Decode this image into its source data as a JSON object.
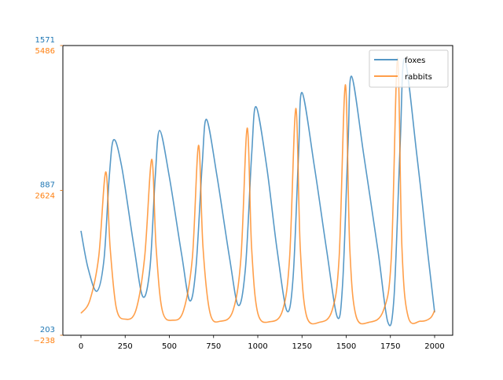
{
  "chart_data": {
    "type": "line",
    "title": "",
    "xlabel": "",
    "ylabel": "",
    "xlim": [
      -100,
      2100
    ],
    "x_ticks": [
      0,
      250,
      500,
      750,
      1000,
      1250,
      1500,
      1750,
      2000
    ],
    "x_tick_labels": [
      "0",
      "250",
      "500",
      "750",
      "1000",
      "1250",
      "1500",
      "1750",
      "2000"
    ],
    "grid": false,
    "legend_position": "upper right",
    "y_axes": [
      {
        "series": "foxes",
        "color": "#1f77b4",
        "ylim": [
          203,
          1571
        ],
        "ticks": [
          203,
          887,
          1571
        ],
        "tick_labels": [
          "203",
          "887",
          "1571"
        ]
      },
      {
        "series": "rabbits",
        "color": "#ff7f0e",
        "ylim": [
          -238,
          5486
        ],
        "ticks": [
          -238,
          2624,
          5486
        ],
        "tick_labels": [
          "−238",
          "2624",
          "5486"
        ]
      }
    ],
    "series": [
      {
        "name": "foxes",
        "color": "#1f77b4",
        "points": [
          [
            0,
            696
          ],
          [
            40,
            520
          ],
          [
            90,
            411
          ],
          [
            130,
            560
          ],
          [
            160,
            950
          ],
          [
            185,
            1126
          ],
          [
            230,
            1000
          ],
          [
            300,
            620
          ],
          [
            350,
            385
          ],
          [
            390,
            520
          ],
          [
            420,
            950
          ],
          [
            445,
            1170
          ],
          [
            500,
            950
          ],
          [
            570,
            580
          ],
          [
            615,
            366
          ],
          [
            650,
            520
          ],
          [
            685,
            1000
          ],
          [
            710,
            1222
          ],
          [
            770,
            950
          ],
          [
            840,
            570
          ],
          [
            890,
            344
          ],
          [
            930,
            520
          ],
          [
            965,
            1050
          ],
          [
            990,
            1282
          ],
          [
            1050,
            1000
          ],
          [
            1110,
            600
          ],
          [
            1165,
            318
          ],
          [
            1200,
            480
          ],
          [
            1230,
            1050
          ],
          [
            1250,
            1349
          ],
          [
            1320,
            1000
          ],
          [
            1390,
            600
          ],
          [
            1450,
            288
          ],
          [
            1480,
            450
          ],
          [
            1510,
            1100
          ],
          [
            1530,
            1426
          ],
          [
            1600,
            1050
          ],
          [
            1680,
            600
          ],
          [
            1735,
            266
          ],
          [
            1770,
            380
          ],
          [
            1805,
            1100
          ],
          [
            1830,
            1508
          ],
          [
            1900,
            1050
          ],
          [
            1960,
            600
          ],
          [
            2000,
            311
          ]
        ]
      },
      {
        "name": "rabbits",
        "color": "#ff7f0e",
        "points": [
          [
            0,
            196
          ],
          [
            50,
            450
          ],
          [
            100,
            1300
          ],
          [
            140,
            2988
          ],
          [
            165,
            1500
          ],
          [
            200,
            300
          ],
          [
            250,
            80
          ],
          [
            310,
            250
          ],
          [
            360,
            1300
          ],
          [
            400,
            3236
          ],
          [
            425,
            1500
          ],
          [
            460,
            250
          ],
          [
            520,
            60
          ],
          [
            580,
            250
          ],
          [
            630,
            1300
          ],
          [
            665,
            3515
          ],
          [
            690,
            1500
          ],
          [
            730,
            200
          ],
          [
            790,
            40
          ],
          [
            860,
            250
          ],
          [
            905,
            1300
          ],
          [
            940,
            3856
          ],
          [
            965,
            1500
          ],
          [
            1000,
            200
          ],
          [
            1070,
            30
          ],
          [
            1140,
            250
          ],
          [
            1180,
            1300
          ],
          [
            1215,
            4244
          ],
          [
            1240,
            1500
          ],
          [
            1275,
            150
          ],
          [
            1350,
            20
          ],
          [
            1420,
            250
          ],
          [
            1460,
            1300
          ],
          [
            1495,
            4710
          ],
          [
            1520,
            1500
          ],
          [
            1555,
            150
          ],
          [
            1630,
            20
          ],
          [
            1710,
            250
          ],
          [
            1755,
            1300
          ],
          [
            1790,
            5237
          ],
          [
            1815,
            1500
          ],
          [
            1850,
            130
          ],
          [
            1920,
            40
          ],
          [
            1975,
            100
          ],
          [
            2000,
            250
          ]
        ]
      }
    ]
  },
  "legend": {
    "items": [
      {
        "label": "foxes",
        "color": "#1f77b4"
      },
      {
        "label": "rabbits",
        "color": "#ff7f0e"
      }
    ]
  }
}
